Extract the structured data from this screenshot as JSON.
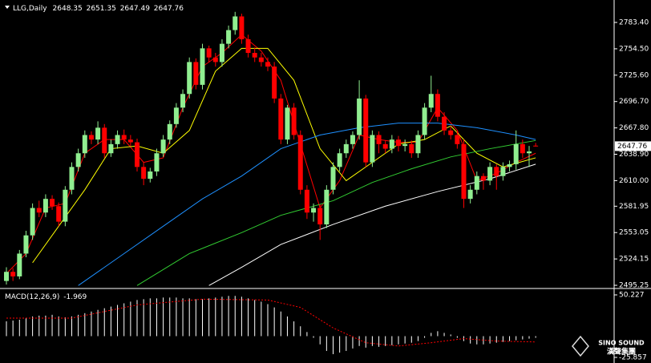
{
  "chart_data": {
    "type": "candlestick",
    "symbol": "LLG,Daily",
    "up_color": "#90ee90",
    "down_color": "#ff0000",
    "open": [
      2500,
      2510,
      2505,
      2530,
      2550,
      2580,
      2575,
      2590,
      2582,
      2565,
      2600,
      2625,
      2640,
      2660,
      2655,
      2668,
      2640,
      2650,
      2660,
      2655,
      2652,
      2625,
      2612,
      2620,
      2640,
      2655,
      2672,
      2690,
      2705,
      2740,
      2715,
      2755,
      2745,
      2740,
      2760,
      2775,
      2790,
      2765,
      2750,
      2745,
      2740,
      2735,
      2700,
      2655,
      2690,
      2660,
      2600,
      2575,
      2580,
      2562,
      2600,
      2625,
      2640,
      2650,
      2660,
      2700,
      2630,
      2660,
      2650,
      2645,
      2655,
      2648,
      2650,
      2640,
      2660,
      2690,
      2705,
      2680,
      2665,
      2660,
      2650,
      2590,
      2600,
      2615,
      2610,
      2625,
      2615,
      2625,
      2628,
      2650,
      2640,
      2648.35
    ],
    "high": [
      2515,
      2514,
      2534,
      2555,
      2585,
      2588,
      2595,
      2594,
      2586,
      2604,
      2630,
      2645,
      2665,
      2664,
      2675,
      2672,
      2655,
      2665,
      2666,
      2660,
      2656,
      2630,
      2624,
      2645,
      2660,
      2676,
      2695,
      2710,
      2745,
      2744,
      2760,
      2758,
      2750,
      2765,
      2780,
      2795,
      2793,
      2770,
      2756,
      2750,
      2745,
      2740,
      2705,
      2693,
      2695,
      2665,
      2605,
      2585,
      2584,
      2605,
      2630,
      2645,
      2655,
      2664,
      2720,
      2704,
      2665,
      2664,
      2654,
      2660,
      2659,
      2655,
      2654,
      2665,
      2695,
      2725,
      2710,
      2685,
      2670,
      2664,
      2655,
      2605,
      2620,
      2618,
      2630,
      2628,
      2630,
      2632,
      2665,
      2655,
      2648,
      2651.35
    ],
    "low": [
      2496,
      2500,
      2502,
      2526,
      2545,
      2570,
      2570,
      2578,
      2560,
      2560,
      2595,
      2620,
      2635,
      2650,
      2650,
      2635,
      2636,
      2645,
      2650,
      2648,
      2620,
      2605,
      2608,
      2615,
      2636,
      2650,
      2668,
      2685,
      2700,
      2710,
      2710,
      2740,
      2735,
      2735,
      2755,
      2770,
      2760,
      2745,
      2740,
      2735,
      2730,
      2695,
      2650,
      2650,
      2655,
      2595,
      2568,
      2565,
      2545,
      2558,
      2595,
      2620,
      2635,
      2645,
      2655,
      2625,
      2625,
      2640,
      2640,
      2640,
      2642,
      2642,
      2635,
      2635,
      2655,
      2685,
      2675,
      2660,
      2655,
      2645,
      2580,
      2585,
      2595,
      2600,
      2605,
      2600,
      2610,
      2620,
      2622,
      2635,
      2625,
      2647.49
    ],
    "close": [
      2510,
      2505,
      2530,
      2550,
      2580,
      2575,
      2590,
      2582,
      2565,
      2600,
      2625,
      2640,
      2660,
      2655,
      2668,
      2640,
      2650,
      2660,
      2655,
      2652,
      2625,
      2612,
      2620,
      2640,
      2655,
      2672,
      2690,
      2705,
      2740,
      2715,
      2755,
      2745,
      2740,
      2760,
      2775,
      2790,
      2765,
      2750,
      2745,
      2740,
      2735,
      2700,
      2655,
      2690,
      2660,
      2600,
      2575,
      2580,
      2562,
      2600,
      2625,
      2640,
      2650,
      2660,
      2700,
      2630,
      2660,
      2650,
      2645,
      2655,
      2648,
      2650,
      2640,
      2660,
      2690,
      2705,
      2680,
      2665,
      2660,
      2650,
      2590,
      2600,
      2615,
      2610,
      2625,
      2615,
      2625,
      2628,
      2650,
      2640,
      2642,
      2647.76
    ],
    "lines": [
      {
        "color": "#ff0000",
        "x": [
          0,
          3,
          6,
          9,
          12,
          15,
          18,
          21,
          24,
          27,
          30,
          33,
          36,
          39,
          42,
          45,
          48,
          51,
          54,
          57,
          60,
          63,
          66,
          69,
          72,
          75,
          78,
          81
        ],
        "values": [
          2508,
          2530,
          2580,
          2585,
          2640,
          2655,
          2655,
          2630,
          2635,
          2690,
          2735,
          2750,
          2770,
          2752,
          2720,
          2650,
          2580,
          2610,
          2660,
          2655,
          2652,
          2652,
          2690,
          2665,
          2610,
          2618,
          2630,
          2640
        ]
      },
      {
        "color": "#ffff00",
        "x": [
          4,
          8,
          12,
          16,
          20,
          24,
          28,
          32,
          36,
          40,
          44,
          48,
          52,
          56,
          60,
          64,
          68,
          72,
          76,
          81
        ],
        "values": [
          2520,
          2560,
          2600,
          2645,
          2648,
          2640,
          2665,
          2730,
          2755,
          2755,
          2720,
          2645,
          2610,
          2630,
          2650,
          2655,
          2670,
          2640,
          2625,
          2635
        ]
      },
      {
        "color": "#1e90ff",
        "x": [
          11,
          18,
          24,
          30,
          36,
          42,
          48,
          54,
          60,
          66,
          72,
          78,
          81
        ],
        "values": [
          2495,
          2530,
          2560,
          2590,
          2615,
          2645,
          2660,
          2668,
          2673,
          2673,
          2668,
          2660,
          2655
        ]
      },
      {
        "color": "#32cd32",
        "x": [
          20,
          28,
          36,
          42,
          50,
          56,
          62,
          68,
          74,
          81
        ],
        "values": [
          2495,
          2530,
          2553,
          2572,
          2588,
          2608,
          2623,
          2636,
          2645,
          2654
        ]
      },
      {
        "color": "#ffffff",
        "x": [
          31,
          36,
          42,
          50,
          58,
          66,
          74,
          81
        ],
        "values": [
          2495,
          2515,
          2540,
          2562,
          2582,
          2598,
          2612,
          2628
        ]
      }
    ],
    "ylim": [
      2494.4,
      2808.0
    ],
    "yticks": [
      {
        "value": 2783.4,
        "label": "2783.40"
      },
      {
        "value": 2754.5,
        "label": "2754.50"
      },
      {
        "value": 2725.6,
        "label": "2725.60"
      },
      {
        "value": 2696.7,
        "label": "2696.70"
      },
      {
        "value": 2667.8,
        "label": "2667.80"
      },
      {
        "value": 2638.9,
        "label": "2638.90"
      },
      {
        "value": 2610,
        "label": "2610.00"
      },
      {
        "value": 2581.95,
        "label": "2581.95"
      },
      {
        "value": 2553.05,
        "label": "2553.05"
      },
      {
        "value": 2524.15,
        "label": "2524.15"
      },
      {
        "value": 2495.25,
        "label": "2495.25"
      }
    ],
    "macd": {
      "label": "MACD(12,26,9)",
      "color": "#ffffff",
      "values": [
        18,
        19,
        20,
        22,
        24,
        25,
        25,
        26,
        24,
        23,
        24,
        26,
        28,
        30,
        32,
        34,
        36,
        38,
        40,
        42,
        44,
        45,
        46,
        46,
        47,
        47,
        47,
        46,
        46,
        45,
        45,
        46,
        47,
        48,
        49,
        49,
        48,
        46,
        44,
        42,
        39,
        35,
        30,
        24,
        18,
        12,
        5,
        -2,
        -10,
        -18,
        -22,
        -20,
        -18,
        -15,
        -12,
        -14,
        -12,
        -13,
        -12,
        -11,
        -10,
        -9,
        -8,
        -6,
        -2,
        4,
        6,
        4,
        2,
        -2,
        -6,
        -9,
        -10,
        -10,
        -9,
        -8,
        -7,
        -6,
        -5,
        -4,
        -3,
        -1.969
      ],
      "signal": {
        "color": "#ff0000",
        "x": [
          0,
          10,
          20,
          30,
          40,
          45,
          50,
          55,
          60,
          65,
          70,
          75,
          81
        ],
        "values": [
          22,
          22,
          38,
          45,
          44,
          35,
          10,
          -8,
          -12,
          -8,
          -3,
          -6,
          -7.052
        ]
      },
      "ylim": [
        -29.76,
        56.08
      ],
      "yticks": [
        50.227,
        -25.857
      ]
    },
    "watermark": "SINO SOUND",
    "watermark_cn": "漢聲集團"
  }
}
